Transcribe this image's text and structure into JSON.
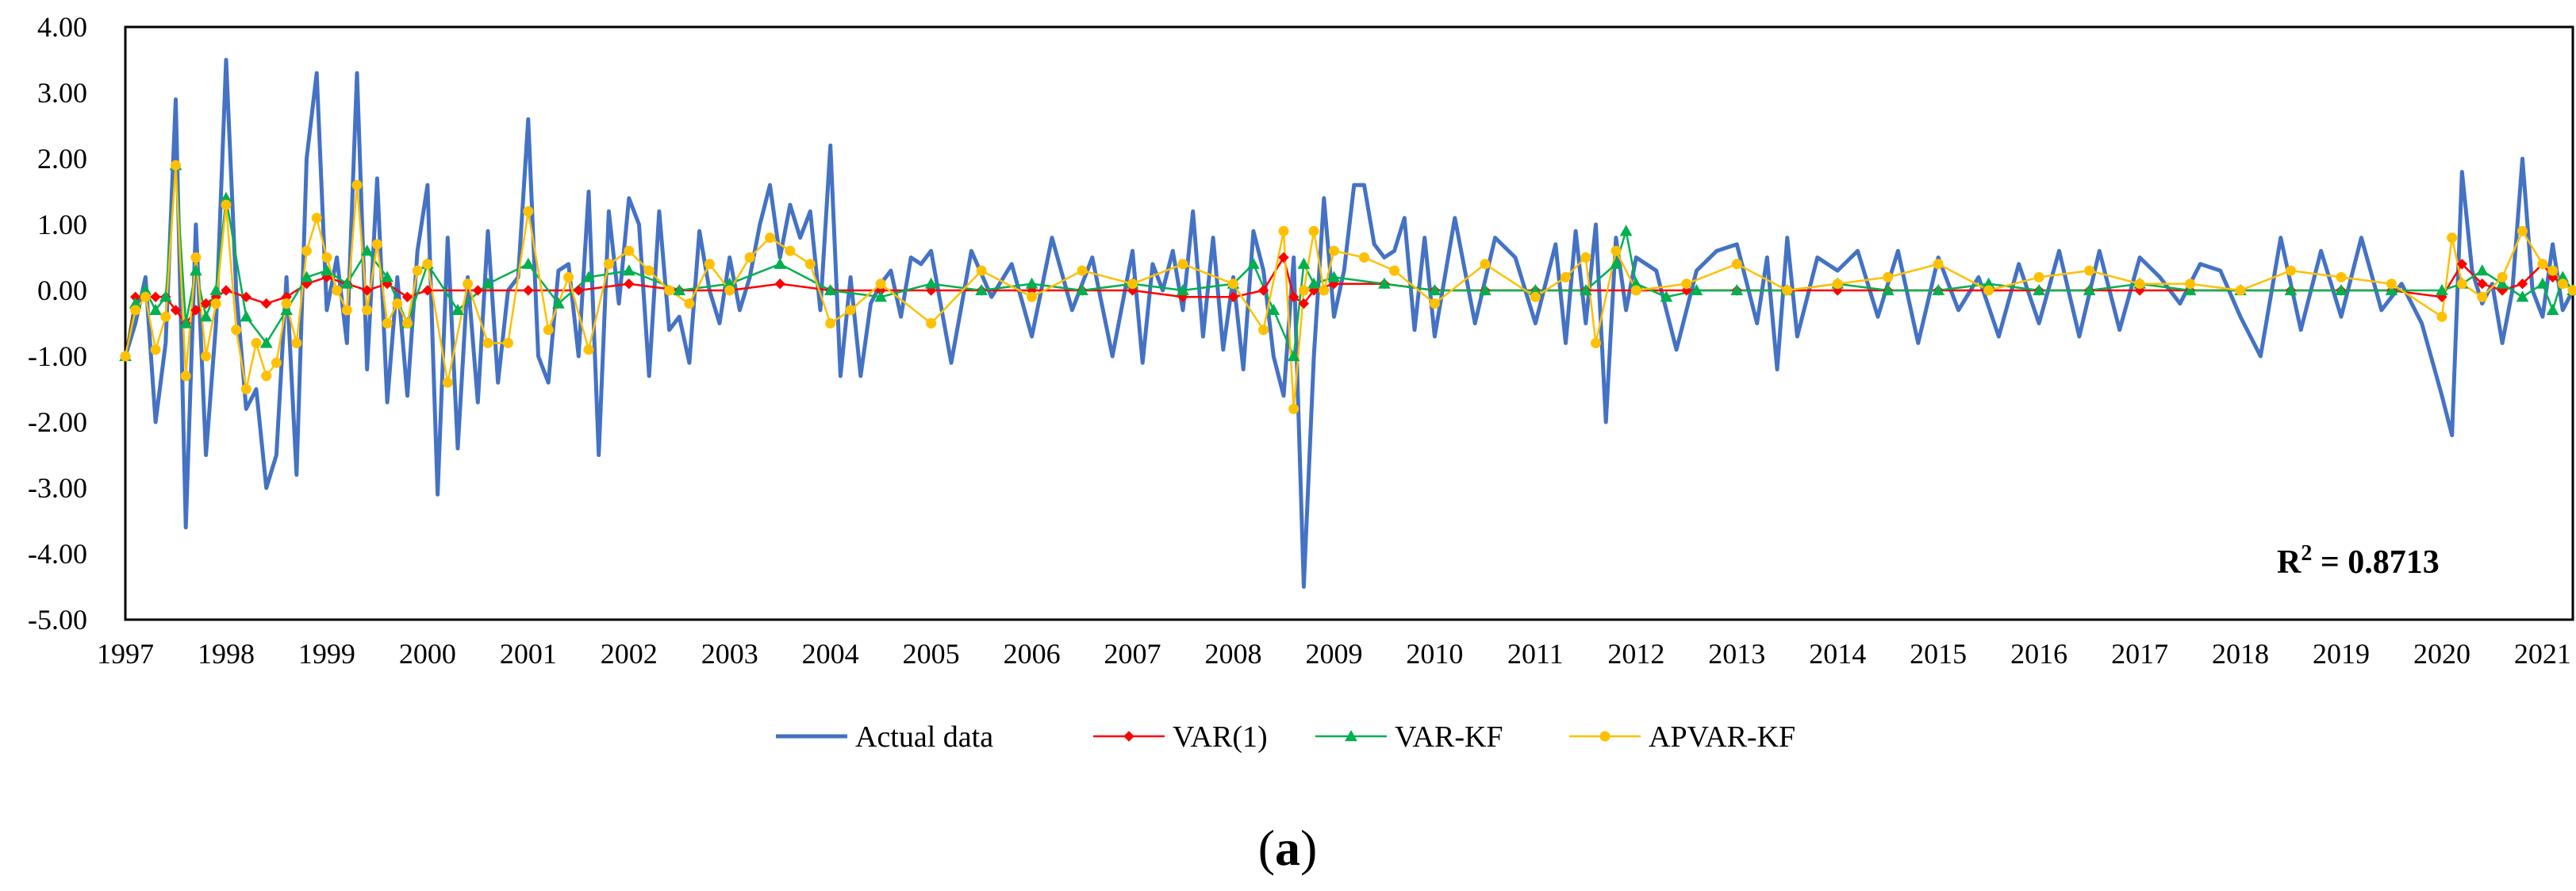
{
  "chart_data": {
    "type": "line",
    "title": "",
    "xlabel": "",
    "ylabel": "",
    "ylim": [
      -5,
      4
    ],
    "yticks": [
      "4.00",
      "3.00",
      "2.00",
      "1.00",
      "0.00",
      "-1.00",
      "-2.00",
      "-3.00",
      "-4.00",
      "-5.00"
    ],
    "xlim": [
      1997,
      2021.3
    ],
    "xticks": [
      "1997",
      "1998",
      "1999",
      "2000",
      "2001",
      "2002",
      "2003",
      "2004",
      "2005",
      "2006",
      "2007",
      "2008",
      "2009",
      "2010",
      "2011",
      "2012",
      "2013",
      "2014",
      "2015",
      "2016",
      "2017",
      "2018",
      "2019",
      "2020",
      "2021"
    ],
    "annotation": {
      "prefix": "R",
      "superscript": "2",
      "suffix": " = 0.8713"
    },
    "caption": {
      "open": "(",
      "label": "a",
      "close": ")"
    },
    "series": [
      {
        "name": "Actual data",
        "color": "#4472C4",
        "marker": "none",
        "x": [
          1997.0,
          1997.1,
          1997.2,
          1997.3,
          1997.4,
          1997.5,
          1997.6,
          1997.7,
          1997.8,
          1997.9,
          1998.0,
          1998.1,
          1998.2,
          1998.3,
          1998.4,
          1998.5,
          1998.6,
          1998.7,
          1998.8,
          1998.9,
          1999.0,
          1999.1,
          1999.2,
          1999.3,
          1999.4,
          1999.5,
          1999.6,
          1999.7,
          1999.8,
          1999.9,
          2000.0,
          2000.1,
          2000.2,
          2000.3,
          2000.4,
          2000.5,
          2000.6,
          2000.7,
          2000.8,
          2000.9,
          2001.0,
          2001.1,
          2001.2,
          2001.3,
          2001.4,
          2001.5,
          2001.6,
          2001.7,
          2001.8,
          2001.9,
          2002.0,
          2002.1,
          2002.2,
          2002.3,
          2002.4,
          2002.5,
          2002.6,
          2002.7,
          2002.8,
          2002.9,
          2003.0,
          2003.1,
          2003.2,
          2003.3,
          2003.4,
          2003.5,
          2003.6,
          2003.7,
          2003.8,
          2003.9,
          2004.0,
          2004.1,
          2004.2,
          2004.3,
          2004.4,
          2004.5,
          2004.6,
          2004.7,
          2004.8,
          2004.9,
          2005.0,
          2005.2,
          2005.4,
          2005.6,
          2005.8,
          2006.0,
          2006.2,
          2006.4,
          2006.6,
          2006.8,
          2007.0,
          2007.1,
          2007.2,
          2007.3,
          2007.4,
          2007.5,
          2007.6,
          2007.7,
          2007.8,
          2007.9,
          2008.0,
          2008.1,
          2008.2,
          2008.3,
          2008.4,
          2008.5,
          2008.6,
          2008.7,
          2008.8,
          2008.9,
          2009.0,
          2009.1,
          2009.2,
          2009.3,
          2009.4,
          2009.5,
          2009.6,
          2009.7,
          2009.8,
          2009.9,
          2010.0,
          2010.2,
          2010.4,
          2010.6,
          2010.8,
          2011.0,
          2011.2,
          2011.3,
          2011.4,
          2011.5,
          2011.6,
          2011.7,
          2011.8,
          2011.9,
          2012.0,
          2012.2,
          2012.4,
          2012.6,
          2012.8,
          2013.0,
          2013.2,
          2013.3,
          2013.4,
          2013.5,
          2013.6,
          2013.8,
          2014.0,
          2014.2,
          2014.4,
          2014.6,
          2014.8,
          2015.0,
          2015.2,
          2015.4,
          2015.6,
          2015.8,
          2016.0,
          2016.2,
          2016.4,
          2016.6,
          2016.8,
          2017.0,
          2017.2,
          2017.4,
          2017.6,
          2017.8,
          2018.0,
          2018.2,
          2018.4,
          2018.6,
          2018.8,
          2019.0,
          2019.2,
          2019.4,
          2019.6,
          2019.8,
          2020.0,
          2020.1,
          2020.2,
          2020.3,
          2020.4,
          2020.5,
          2020.6,
          2020.7,
          2020.8,
          2020.9,
          2021.0,
          2021.1,
          2021.2,
          2021.3
        ],
        "y": [
          -1.0,
          -0.5,
          0.2,
          -2.0,
          -0.8,
          2.9,
          -3.6,
          1.0,
          -2.5,
          -0.5,
          3.5,
          0.0,
          -1.8,
          -1.5,
          -3.0,
          -2.5,
          0.2,
          -2.8,
          2.0,
          3.3,
          -0.3,
          0.5,
          -0.8,
          3.3,
          -1.2,
          1.7,
          -1.7,
          0.2,
          -1.6,
          0.6,
          1.6,
          -3.1,
          0.8,
          -2.4,
          0.2,
          -1.7,
          0.9,
          -1.4,
          0.0,
          0.2,
          2.6,
          -1.0,
          -1.4,
          0.3,
          0.4,
          -1.0,
          1.5,
          -2.5,
          1.2,
          -0.2,
          1.4,
          1.0,
          -1.3,
          1.2,
          -0.6,
          -0.4,
          -1.1,
          0.9,
          0.0,
          -0.5,
          0.5,
          -0.3,
          0.2,
          1.0,
          1.6,
          0.5,
          1.3,
          0.8,
          1.2,
          -0.3,
          2.2,
          -1.3,
          0.2,
          -1.3,
          -0.2,
          0.1,
          0.3,
          -0.4,
          0.5,
          0.4,
          0.6,
          -1.1,
          0.6,
          -0.1,
          0.4,
          -0.7,
          0.8,
          -0.3,
          0.5,
          -1.0,
          0.6,
          -1.1,
          0.4,
          0.0,
          0.6,
          -0.3,
          1.2,
          -0.7,
          0.8,
          -0.9,
          0.2,
          -1.2,
          0.9,
          0.3,
          -1.0,
          -1.6,
          0.5,
          -4.5,
          -1.0,
          1.4,
          -0.4,
          0.3,
          1.6,
          1.6,
          0.7,
          0.5,
          0.6,
          1.1,
          -0.6,
          0.8,
          -0.7,
          1.1,
          -0.5,
          0.8,
          0.5,
          -0.5,
          0.7,
          -0.8,
          0.9,
          -0.5,
          1.0,
          -2.0,
          0.8,
          -0.3,
          0.5,
          0.3,
          -0.9,
          0.3,
          0.6,
          0.7,
          -0.5,
          0.5,
          -1.2,
          0.8,
          -0.7,
          0.5,
          0.3,
          0.6,
          -0.4,
          0.6,
          -0.8,
          0.5,
          -0.3,
          0.2,
          -0.7,
          0.4,
          -0.5,
          0.6,
          -0.7,
          0.6,
          -0.6,
          0.5,
          0.2,
          -0.2,
          0.4,
          0.3,
          -0.4,
          -1.0,
          0.8,
          -0.6,
          0.6,
          -0.4,
          0.8,
          -0.3,
          0.1,
          -0.5,
          -1.6,
          -2.2,
          1.8,
          0.3,
          -0.2,
          0.1,
          -0.8,
          0.0,
          2.0,
          0.0,
          -0.4,
          0.7,
          -0.3,
          0.0
        ]
      },
      {
        "name": "VAR(1)",
        "color": "#FF0000",
        "marker": "diamond",
        "x": [
          1997.0,
          1997.1,
          1997.2,
          1997.3,
          1997.4,
          1997.5,
          1997.6,
          1997.7,
          1997.8,
          1997.9,
          1998.0,
          1998.2,
          1998.4,
          1998.6,
          1998.8,
          1999.0,
          1999.2,
          1999.4,
          1999.6,
          1999.8,
          2000.0,
          2000.5,
          2001.0,
          2001.5,
          2002.0,
          2002.5,
          2003.0,
          2003.5,
          2004.0,
          2004.5,
          2005.0,
          2005.5,
          2006.0,
          2006.5,
          2007.0,
          2007.5,
          2008.0,
          2008.3,
          2008.5,
          2008.6,
          2008.7,
          2008.8,
          2009.0,
          2009.5,
          2010.0,
          2010.5,
          2011.0,
          2011.5,
          2012.0,
          2012.5,
          2013.0,
          2013.5,
          2014.0,
          2014.5,
          2015.0,
          2015.5,
          2016.0,
          2016.5,
          2017.0,
          2017.5,
          2018.0,
          2018.5,
          2019.0,
          2019.5,
          2020.0,
          2020.2,
          2020.4,
          2020.6,
          2020.8,
          2021.0,
          2021.1,
          2021.2,
          2021.3
        ],
        "y": [
          -1.0,
          -0.1,
          -0.1,
          -0.1,
          -0.1,
          -0.3,
          -0.5,
          -0.3,
          -0.2,
          -0.1,
          0.0,
          -0.1,
          -0.2,
          -0.1,
          0.1,
          0.2,
          0.1,
          0.0,
          0.1,
          -0.1,
          0.0,
          0.0,
          0.0,
          0.0,
          0.1,
          0.0,
          0.0,
          0.1,
          0.0,
          0.0,
          0.0,
          0.0,
          0.0,
          0.0,
          0.0,
          -0.1,
          -0.1,
          0.0,
          0.5,
          -0.1,
          -0.2,
          0.0,
          0.1,
          0.1,
          0.0,
          0.0,
          0.0,
          0.0,
          0.0,
          0.0,
          0.0,
          0.0,
          0.0,
          0.0,
          0.0,
          0.0,
          0.0,
          0.0,
          0.0,
          0.0,
          0.0,
          0.0,
          0.0,
          0.0,
          -0.1,
          0.4,
          0.1,
          0.0,
          0.1,
          0.4,
          0.2,
          0.1,
          0.0
        ]
      },
      {
        "name": "VAR-KF",
        "color": "#00B050",
        "marker": "triangle",
        "x": [
          1997.0,
          1997.1,
          1997.2,
          1997.3,
          1997.4,
          1997.5,
          1997.6,
          1997.7,
          1997.8,
          1997.9,
          1998.0,
          1998.2,
          1998.4,
          1998.6,
          1998.8,
          1999.0,
          1999.2,
          1999.4,
          1999.6,
          1999.8,
          2000.0,
          2000.3,
          2000.6,
          2001.0,
          2001.3,
          2001.6,
          2002.0,
          2002.5,
          2003.0,
          2003.5,
          2004.0,
          2004.5,
          2005.0,
          2005.5,
          2006.0,
          2006.5,
          2007.0,
          2007.5,
          2008.0,
          2008.2,
          2008.4,
          2008.6,
          2008.7,
          2008.8,
          2009.0,
          2009.5,
          2010.0,
          2010.5,
          2011.0,
          2011.5,
          2011.8,
          2011.9,
          2012.0,
          2012.3,
          2012.6,
          2013.0,
          2013.5,
          2014.0,
          2014.5,
          2015.0,
          2015.5,
          2016.0,
          2016.5,
          2017.0,
          2017.5,
          2018.0,
          2018.5,
          2019.0,
          2019.5,
          2020.0,
          2020.2,
          2020.4,
          2020.6,
          2020.8,
          2021.0,
          2021.1,
          2021.2,
          2021.3
        ],
        "y": [
          -1.0,
          -0.2,
          0.0,
          -0.3,
          -0.1,
          1.9,
          -0.5,
          0.3,
          -0.4,
          0.0,
          1.4,
          -0.4,
          -0.8,
          -0.3,
          0.2,
          0.3,
          0.1,
          0.6,
          0.2,
          -0.5,
          0.4,
          -0.3,
          0.1,
          0.4,
          -0.2,
          0.2,
          0.3,
          0.0,
          0.1,
          0.4,
          0.0,
          -0.1,
          0.1,
          0.0,
          0.1,
          0.0,
          0.1,
          0.0,
          0.1,
          0.4,
          -0.3,
          -1.0,
          0.4,
          0.1,
          0.2,
          0.1,
          0.0,
          0.0,
          0.0,
          0.0,
          0.4,
          0.9,
          0.1,
          -0.1,
          0.0,
          0.0,
          0.0,
          0.1,
          0.0,
          0.0,
          0.1,
          0.0,
          0.0,
          0.1,
          0.0,
          0.0,
          0.0,
          0.0,
          0.0,
          0.0,
          0.1,
          0.3,
          0.1,
          -0.1,
          0.1,
          -0.3,
          0.2,
          0.0
        ]
      },
      {
        "name": "APVAR-KF",
        "color": "#FFC000",
        "marker": "circle",
        "x": [
          1997.0,
          1997.1,
          1997.2,
          1997.3,
          1997.4,
          1997.5,
          1997.6,
          1997.7,
          1997.8,
          1997.9,
          1998.0,
          1998.1,
          1998.2,
          1998.3,
          1998.4,
          1998.5,
          1998.6,
          1998.7,
          1998.8,
          1998.9,
          1999.0,
          1999.1,
          1999.2,
          1999.3,
          1999.4,
          1999.5,
          1999.6,
          1999.7,
          1999.8,
          1999.9,
          2000.0,
          2000.2,
          2000.4,
          2000.6,
          2000.8,
          2001.0,
          2001.2,
          2001.4,
          2001.6,
          2001.8,
          2002.0,
          2002.2,
          2002.4,
          2002.6,
          2002.8,
          2003.0,
          2003.2,
          2003.4,
          2003.6,
          2003.8,
          2004.0,
          2004.2,
          2004.5,
          2005.0,
          2005.5,
          2006.0,
          2006.5,
          2007.0,
          2007.5,
          2008.0,
          2008.3,
          2008.5,
          2008.6,
          2008.7,
          2008.8,
          2008.9,
          2009.0,
          2009.3,
          2009.6,
          2010.0,
          2010.5,
          2011.0,
          2011.3,
          2011.5,
          2011.6,
          2011.8,
          2012.0,
          2012.5,
          2013.0,
          2013.5,
          2014.0,
          2014.5,
          2015.0,
          2015.5,
          2016.0,
          2016.5,
          2017.0,
          2017.5,
          2018.0,
          2018.5,
          2019.0,
          2019.5,
          2020.0,
          2020.1,
          2020.2,
          2020.4,
          2020.6,
          2020.8,
          2021.0,
          2021.1,
          2021.2,
          2021.3
        ],
        "y": [
          -1.0,
          -0.3,
          -0.1,
          -0.9,
          -0.4,
          1.9,
          -1.3,
          0.5,
          -1.0,
          -0.2,
          1.3,
          -0.6,
          -1.5,
          -0.8,
          -1.3,
          -1.1,
          -0.2,
          -0.8,
          0.6,
          1.1,
          0.5,
          0.0,
          -0.3,
          1.6,
          -0.3,
          0.7,
          -0.5,
          -0.2,
          -0.5,
          0.3,
          0.4,
          -1.4,
          0.1,
          -0.8,
          -0.8,
          1.2,
          -0.6,
          0.2,
          -0.9,
          0.4,
          0.6,
          0.3,
          0.0,
          -0.2,
          0.4,
          0.0,
          0.5,
          0.8,
          0.6,
          0.4,
          -0.5,
          -0.3,
          0.1,
          -0.5,
          0.3,
          -0.1,
          0.3,
          0.1,
          0.4,
          0.1,
          -0.6,
          0.9,
          -1.8,
          0.0,
          0.9,
          0.0,
          0.6,
          0.5,
          0.3,
          -0.2,
          0.4,
          -0.1,
          0.2,
          0.5,
          -0.8,
          0.6,
          0.0,
          0.1,
          0.4,
          0.0,
          0.1,
          0.2,
          0.4,
          0.0,
          0.2,
          0.3,
          0.1,
          0.1,
          0.0,
          0.3,
          0.2,
          0.1,
          -0.4,
          0.8,
          0.1,
          -0.1,
          0.2,
          0.9,
          0.4,
          0.3,
          0.1,
          0.0
        ]
      }
    ]
  }
}
